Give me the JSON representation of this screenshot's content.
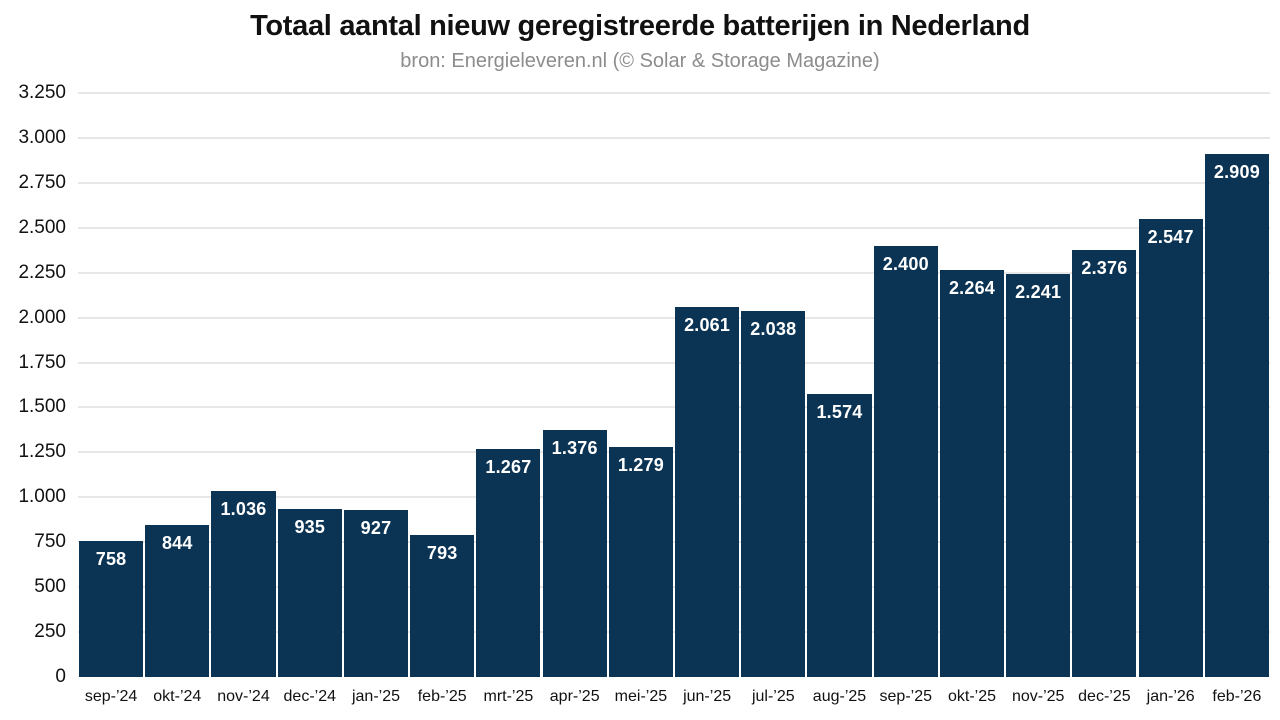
{
  "header": {
    "title": "Totaal aantal nieuw geregistreerde batterijen in Nederland",
    "subtitle": "bron: Energieleveren.nl (© Solar & Storage Magazine)"
  },
  "colors": {
    "background": "#ffffff",
    "bar": "#0a3354",
    "bar_label": "#ffffff",
    "gridline": "#e7e7e7",
    "axis_text": "#111111",
    "title_text": "#111111",
    "subtitle_text": "#8c8c8c"
  },
  "chart_data": {
    "type": "bar",
    "title": "Totaal aantal nieuw geregistreerde batterijen in Nederland",
    "subtitle": "bron: Energieleveren.nl (© Solar & Storage Magazine)",
    "xlabel": "",
    "ylabel": "",
    "ylim": [
      0,
      3250
    ],
    "grid": "horizontal",
    "legend": "none",
    "categories": [
      "sep-’24",
      "okt-’24",
      "nov-’24",
      "dec-’24",
      "jan-’25",
      "feb-’25",
      "mrt-’25",
      "apr-’25",
      "mei-’25",
      "jun-’25",
      "jul-’25",
      "aug-’25",
      "sep-’25",
      "okt-’25",
      "nov-’25",
      "dec-’25",
      "jan-’26",
      "feb-’26"
    ],
    "values": [
      758,
      844,
      1036,
      935,
      927,
      793,
      1267,
      1376,
      1279,
      2061,
      2038,
      1574,
      2400,
      2264,
      2241,
      2376,
      2547,
      2909
    ],
    "value_labels": [
      "758",
      "844",
      "1.036",
      "935",
      "927",
      "793",
      "1.267",
      "1.376",
      "1.279",
      "2.061",
      "2.038",
      "1.574",
      "2.400",
      "2.264",
      "2.241",
      "2.376",
      "2.547",
      "2.909"
    ],
    "y_ticks": [
      {
        "value": 0,
        "label": "0"
      },
      {
        "value": 250,
        "label": "250"
      },
      {
        "value": 500,
        "label": "500"
      },
      {
        "value": 750,
        "label": "750"
      },
      {
        "value": 1000,
        "label": "1.000"
      },
      {
        "value": 1250,
        "label": "1.250"
      },
      {
        "value": 1500,
        "label": "1.500"
      },
      {
        "value": 1750,
        "label": "1.750"
      },
      {
        "value": 2000,
        "label": "2.000"
      },
      {
        "value": 2250,
        "label": "2.250"
      },
      {
        "value": 2500,
        "label": "2.500"
      },
      {
        "value": 2750,
        "label": "2.750"
      },
      {
        "value": 3000,
        "label": "3.000"
      },
      {
        "value": 3250,
        "label": "3.250"
      }
    ]
  }
}
